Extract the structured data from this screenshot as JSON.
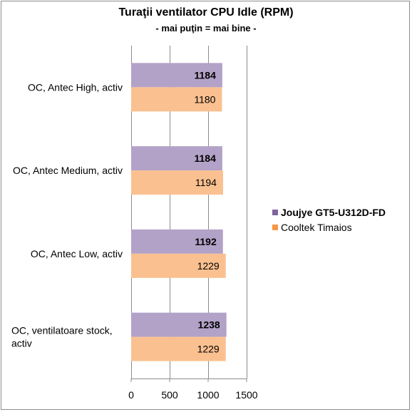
{
  "chart_data": {
    "type": "bar",
    "orientation": "horizontal",
    "title": "Turaţii ventilator CPU Idle (RPM)",
    "subtitle": "- mai puţin = mai bine -",
    "categories": [
      "OC, Antec High, activ",
      "OC, Antec Medium, activ",
      "OC, Antec Low, activ",
      "OC, ventilatoare stock, activ"
    ],
    "series": [
      {
        "name": "Joujye GT5-U312D-FD",
        "values": [
          1184,
          1184,
          1192,
          1238
        ],
        "color": "#b3a2c7",
        "label_bold": true
      },
      {
        "name": "Cooltek Timaios",
        "values": [
          1180,
          1194,
          1229,
          1229
        ],
        "color": "#fac090",
        "label_bold": false
      }
    ],
    "xlim": [
      0,
      1500
    ],
    "xticks": [
      0,
      500,
      1000,
      1500
    ],
    "grid": true,
    "legend_position": "right"
  }
}
